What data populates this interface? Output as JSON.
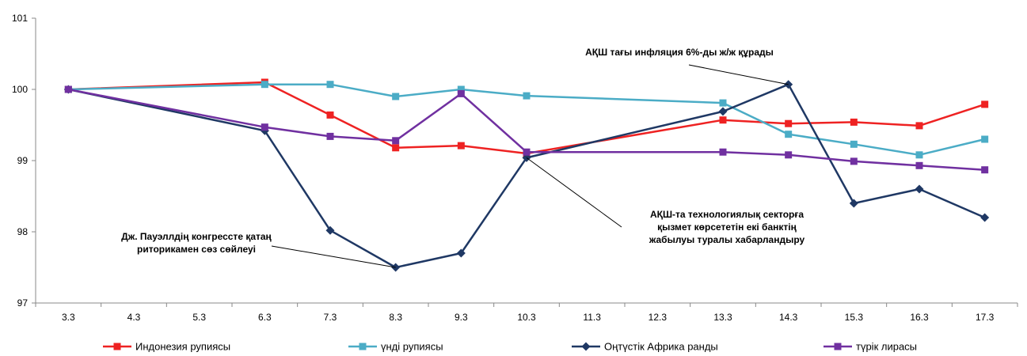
{
  "chart_data": {
    "type": "line",
    "categories": [
      "3.3",
      "4.3",
      "5.3",
      "6.3",
      "7.3",
      "8.3",
      "9.3",
      "10.3",
      "11.3",
      "12.3",
      "13.3",
      "14.3",
      "15.3",
      "16.3",
      "17.3"
    ],
    "ylim": [
      97,
      101
    ],
    "yticks": [
      "97",
      "98",
      "99",
      "100",
      "101"
    ],
    "grid": false,
    "legend_position": "bottom",
    "series": [
      {
        "name": "Индонезия рупиясы",
        "color": "#ee2222",
        "marker": "square",
        "values": [
          100.0,
          null,
          null,
          100.1,
          99.64,
          99.18,
          99.21,
          99.1,
          null,
          null,
          99.57,
          99.52,
          99.54,
          99.49,
          99.79
        ]
      },
      {
        "name": "үнді рупиясы",
        "color": "#4bacc6",
        "marker": "square",
        "values": [
          100.0,
          null,
          null,
          100.07,
          100.07,
          99.9,
          100.0,
          99.91,
          null,
          null,
          99.81,
          99.37,
          99.23,
          99.08,
          99.3
        ]
      },
      {
        "name": "Оңтүстік Африка ранды",
        "color": "#1f3864",
        "marker": "diamond",
        "values": [
          100.0,
          null,
          null,
          99.42,
          98.02,
          97.5,
          97.7,
          99.04,
          null,
          null,
          99.69,
          100.07,
          98.4,
          98.6,
          98.2
        ]
      },
      {
        "name": "түрік лирасы",
        "color": "#7030a0",
        "marker": "square",
        "values": [
          100.0,
          null,
          null,
          99.47,
          99.34,
          99.28,
          99.94,
          99.12,
          null,
          null,
          99.12,
          99.08,
          98.99,
          98.93,
          98.87
        ]
      }
    ],
    "annotations": [
      {
        "lines": [
          "АҚШ тағы инфляция 6%-ды ж/ж құрады"
        ],
        "target_category": "14.3",
        "target_value": 100.07
      },
      {
        "lines": [
          "АҚШ-та технологиялық секторға",
          "қызмет көрсететін екі банктің",
          "жабылуы туралы хабарландыру"
        ],
        "target_category": "10.3",
        "target_value": 99.04
      },
      {
        "lines": [
          "Дж. Пауэллдің конгрессте қатаң",
          "риторикамен сөз сөйлеуі"
        ],
        "target_category": "8.3",
        "target_value": 97.5
      }
    ]
  }
}
